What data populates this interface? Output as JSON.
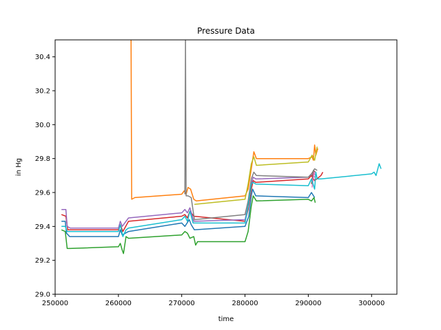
{
  "chart_data": {
    "type": "line",
    "title": "Pressure Data",
    "xlabel": "time",
    "ylabel": "in Hg",
    "xlim": [
      250000,
      304000
    ],
    "ylim": [
      29.0,
      30.5
    ],
    "x_ticks": [
      250000,
      260000,
      270000,
      280000,
      290000,
      300000
    ],
    "x_tick_labels": [
      "250000",
      "260000",
      "270000",
      "280000",
      "290000",
      "300000"
    ],
    "y_ticks": [
      29.0,
      29.2,
      29.4,
      29.6,
      29.8,
      30.0,
      30.2,
      30.4
    ],
    "y_tick_labels": [
      "29.0",
      "29.2",
      "29.4",
      "29.6",
      "29.8",
      "30.0",
      "30.2",
      "30.4"
    ],
    "grid": false,
    "series": [
      {
        "color": "#1f77b4",
        "points": [
          [
            251000,
            29.43
          ],
          [
            251600,
            29.43
          ],
          [
            251800,
            29.36
          ],
          [
            252300,
            29.34
          ],
          [
            260000,
            29.34
          ],
          [
            260300,
            29.38
          ],
          [
            260600,
            29.35
          ],
          [
            261600,
            29.37
          ],
          [
            270000,
            29.42
          ],
          [
            270500,
            29.4
          ],
          [
            271200,
            29.44
          ],
          [
            271500,
            29.41
          ],
          [
            272000,
            29.38
          ],
          [
            280000,
            29.4
          ],
          [
            280600,
            29.46
          ],
          [
            281000,
            29.58
          ],
          [
            281200,
            29.62
          ],
          [
            281700,
            29.58
          ],
          [
            290000,
            29.57
          ],
          [
            290500,
            29.6
          ],
          [
            291000,
            29.57
          ]
        ]
      },
      {
        "color": "#ff7f0e",
        "points": [
          [
            262000,
            30.5
          ],
          [
            262100,
            29.56
          ],
          [
            262600,
            29.57
          ],
          [
            270000,
            29.59
          ],
          [
            270400,
            29.61
          ],
          [
            270700,
            29.59
          ],
          [
            271000,
            29.63
          ],
          [
            271400,
            29.62
          ],
          [
            271900,
            29.56
          ],
          [
            272300,
            29.55
          ],
          [
            280000,
            29.58
          ],
          [
            280500,
            29.62
          ],
          [
            281000,
            29.74
          ],
          [
            281400,
            29.84
          ],
          [
            281800,
            29.8
          ],
          [
            290000,
            29.8
          ],
          [
            290600,
            29.81
          ],
          [
            290800,
            29.79
          ],
          [
            291000,
            29.88
          ],
          [
            291200,
            29.82
          ],
          [
            291500,
            29.86
          ]
        ]
      },
      {
        "color": "#2ca02c",
        "points": [
          [
            251000,
            29.38
          ],
          [
            251600,
            29.37
          ],
          [
            251900,
            29.27
          ],
          [
            252400,
            29.27
          ],
          [
            260000,
            29.28
          ],
          [
            260300,
            29.3
          ],
          [
            260600,
            29.26
          ],
          [
            260800,
            29.24
          ],
          [
            261200,
            29.34
          ],
          [
            261600,
            29.33
          ],
          [
            270000,
            29.35
          ],
          [
            270500,
            29.37
          ],
          [
            270900,
            29.36
          ],
          [
            271300,
            29.33
          ],
          [
            271900,
            29.34
          ],
          [
            272200,
            29.29
          ],
          [
            272500,
            29.31
          ],
          [
            280000,
            29.31
          ],
          [
            280500,
            29.37
          ],
          [
            281000,
            29.52
          ],
          [
            281300,
            29.58
          ],
          [
            281800,
            29.55
          ],
          [
            290000,
            29.56
          ],
          [
            290500,
            29.55
          ],
          [
            290900,
            29.57
          ],
          [
            291100,
            29.54
          ]
        ]
      },
      {
        "color": "#d62728",
        "points": [
          [
            251000,
            29.47
          ],
          [
            251700,
            29.46
          ],
          [
            252000,
            29.38
          ],
          [
            252400,
            29.38
          ],
          [
            260000,
            29.38
          ],
          [
            260300,
            29.41
          ],
          [
            260700,
            29.37
          ],
          [
            261600,
            29.43
          ],
          [
            270000,
            29.46
          ],
          [
            270500,
            29.47
          ],
          [
            270900,
            29.45
          ],
          [
            271300,
            29.49
          ],
          [
            271900,
            29.46
          ],
          [
            280000,
            29.43
          ],
          [
            280500,
            29.5
          ],
          [
            281000,
            29.62
          ],
          [
            281300,
            29.67
          ],
          [
            281700,
            29.66
          ],
          [
            290000,
            29.68
          ],
          [
            290500,
            29.7
          ],
          [
            291000,
            29.67
          ],
          [
            292000,
            29.7
          ],
          [
            292300,
            29.72
          ]
        ]
      },
      {
        "color": "#9467bd",
        "points": [
          [
            251000,
            29.5
          ],
          [
            251700,
            29.5
          ],
          [
            251900,
            29.4
          ],
          [
            252400,
            29.39
          ],
          [
            260000,
            29.39
          ],
          [
            260300,
            29.43
          ],
          [
            260600,
            29.4
          ],
          [
            261600,
            29.45
          ],
          [
            270000,
            29.48
          ],
          [
            270500,
            29.5
          ],
          [
            270900,
            29.48
          ],
          [
            271300,
            29.51
          ],
          [
            271900,
            29.43
          ],
          [
            280000,
            29.44
          ],
          [
            280500,
            29.52
          ],
          [
            281000,
            29.65
          ],
          [
            281300,
            29.69
          ],
          [
            281700,
            29.68
          ],
          [
            290000,
            29.69
          ],
          [
            290500,
            29.71
          ],
          [
            291000,
            29.69
          ]
        ]
      },
      {
        "color": "#8c564b",
        "points": [
          [
            290500,
            29.65
          ],
          [
            290800,
            29.73
          ],
          [
            291100,
            29.72
          ]
        ]
      },
      {
        "color": "#e377c2",
        "points": [
          [
            290600,
            29.63
          ],
          [
            290900,
            29.72
          ],
          [
            291100,
            29.7
          ]
        ]
      },
      {
        "color": "#7f7f7f",
        "points": [
          [
            270500,
            29.59
          ],
          [
            270600,
            30.5
          ],
          [
            270700,
            29.58
          ],
          [
            271000,
            29.58
          ],
          [
            271500,
            29.57
          ],
          [
            272000,
            29.44
          ],
          [
            280000,
            29.47
          ],
          [
            280500,
            29.55
          ],
          [
            281000,
            29.68
          ],
          [
            281400,
            29.72
          ],
          [
            281800,
            29.7
          ],
          [
            290000,
            29.69
          ],
          [
            290500,
            29.71
          ],
          [
            291000,
            29.74
          ],
          [
            291400,
            29.73
          ]
        ]
      },
      {
        "color": "#bcbd22",
        "points": [
          [
            272000,
            29.53
          ],
          [
            280000,
            29.56
          ],
          [
            280500,
            29.65
          ],
          [
            281000,
            29.77
          ],
          [
            281400,
            29.81
          ],
          [
            281800,
            29.76
          ],
          [
            290000,
            29.78
          ],
          [
            290600,
            29.82
          ],
          [
            291000,
            29.79
          ],
          [
            291400,
            29.87
          ]
        ]
      },
      {
        "color": "#17becf",
        "points": [
          [
            251000,
            29.4
          ],
          [
            251600,
            29.4
          ],
          [
            251900,
            29.37
          ],
          [
            252400,
            29.37
          ],
          [
            260000,
            29.37
          ],
          [
            260300,
            29.41
          ],
          [
            260700,
            29.34
          ],
          [
            261200,
            29.38
          ],
          [
            261600,
            29.39
          ],
          [
            270000,
            29.44
          ],
          [
            270500,
            29.46
          ],
          [
            270900,
            29.43
          ],
          [
            271300,
            29.49
          ],
          [
            271800,
            29.42
          ],
          [
            280000,
            29.42
          ],
          [
            280500,
            29.52
          ],
          [
            281000,
            29.65
          ],
          [
            281300,
            29.66
          ],
          [
            281700,
            29.65
          ],
          [
            290000,
            29.64
          ],
          [
            290500,
            29.68
          ],
          [
            291000,
            29.62
          ],
          [
            291200,
            29.72
          ],
          [
            291400,
            29.68
          ],
          [
            292000,
            29.68
          ],
          [
            300000,
            29.71
          ],
          [
            300400,
            29.72
          ],
          [
            300700,
            29.7
          ],
          [
            301200,
            29.77
          ],
          [
            301500,
            29.74
          ]
        ]
      }
    ]
  }
}
